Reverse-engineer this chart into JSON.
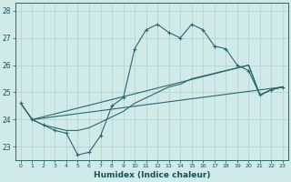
{
  "xlabel": "Humidex (Indice chaleur)",
  "ylabel": "",
  "xlim": [
    -0.5,
    23.5
  ],
  "ylim": [
    22.5,
    28.3
  ],
  "yticks": [
    23,
    24,
    25,
    26,
    27,
    28
  ],
  "xticks": [
    0,
    1,
    2,
    3,
    4,
    5,
    6,
    7,
    8,
    9,
    10,
    11,
    12,
    13,
    14,
    15,
    16,
    17,
    18,
    19,
    20,
    21,
    22,
    23
  ],
  "bg_color": "#d0eaea",
  "grid_color": "#b0d0d0",
  "line_color": "#2a6868",
  "series": [
    {
      "x": [
        0,
        1,
        2,
        3,
        4,
        5,
        6,
        7,
        8,
        9,
        10,
        11,
        12,
        13,
        14,
        15,
        16,
        17,
        18,
        19,
        20,
        21,
        22,
        23
      ],
      "y": [
        24.6,
        24.0,
        23.8,
        23.6,
        23.5,
        22.7,
        22.8,
        23.4,
        24.5,
        24.8,
        26.6,
        27.3,
        27.5,
        27.2,
        27.0,
        27.5,
        27.3,
        26.7,
        26.6,
        26.0,
        25.8,
        24.9,
        25.1,
        25.2
      ],
      "marker": true
    },
    {
      "x": [
        0,
        1,
        23
      ],
      "y": [
        24.6,
        24.0,
        25.2
      ],
      "marker": false
    },
    {
      "x": [
        0,
        1,
        20,
        21,
        22,
        23
      ],
      "y": [
        24.6,
        24.0,
        26.0,
        24.9,
        25.1,
        25.2
      ],
      "marker": false
    },
    {
      "x": [
        1,
        2,
        3,
        4,
        5,
        6,
        7,
        8,
        9,
        10,
        11,
        12,
        13,
        14,
        15,
        16,
        17,
        18,
        19,
        20,
        21,
        22,
        23
      ],
      "y": [
        24.0,
        23.8,
        23.7,
        23.6,
        23.6,
        23.7,
        23.9,
        24.1,
        24.3,
        24.6,
        24.8,
        25.0,
        25.2,
        25.3,
        25.5,
        25.6,
        25.7,
        25.8,
        25.9,
        26.0,
        24.9,
        25.1,
        25.2
      ],
      "marker": false
    }
  ]
}
